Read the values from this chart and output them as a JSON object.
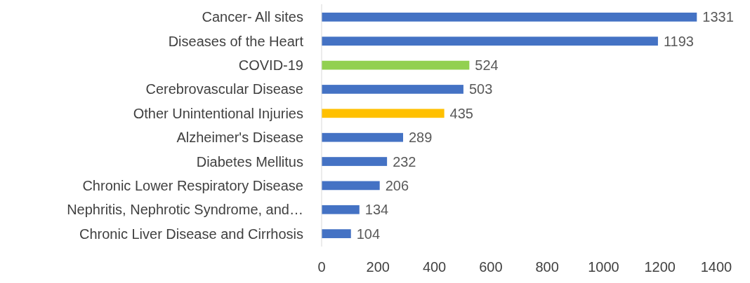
{
  "chart_data": {
    "type": "bar",
    "orientation": "horizontal",
    "categories": [
      "Cancer- All sites",
      "Diseases of the Heart",
      "COVID-19",
      "Cerebrovascular Disease",
      "Other Unintentional Injuries",
      "Alzheimer's Disease",
      "Diabetes Mellitus",
      "Chronic Lower Respiratory Disease",
      "Nephritis, Nephrotic Syndrome, and…",
      "Chronic Liver Disease and Cirrhosis"
    ],
    "values": [
      1331,
      1193,
      524,
      503,
      435,
      289,
      232,
      206,
      134,
      104
    ],
    "colors": [
      "#4472c4",
      "#4472c4",
      "#92d050",
      "#4472c4",
      "#ffc000",
      "#4472c4",
      "#4472c4",
      "#4472c4",
      "#4472c4",
      "#4472c4"
    ],
    "xlim": [
      0,
      1400
    ],
    "xticks": [
      0,
      200,
      400,
      600,
      800,
      1000,
      1200,
      1400
    ],
    "data_labels": true,
    "grid": false
  }
}
